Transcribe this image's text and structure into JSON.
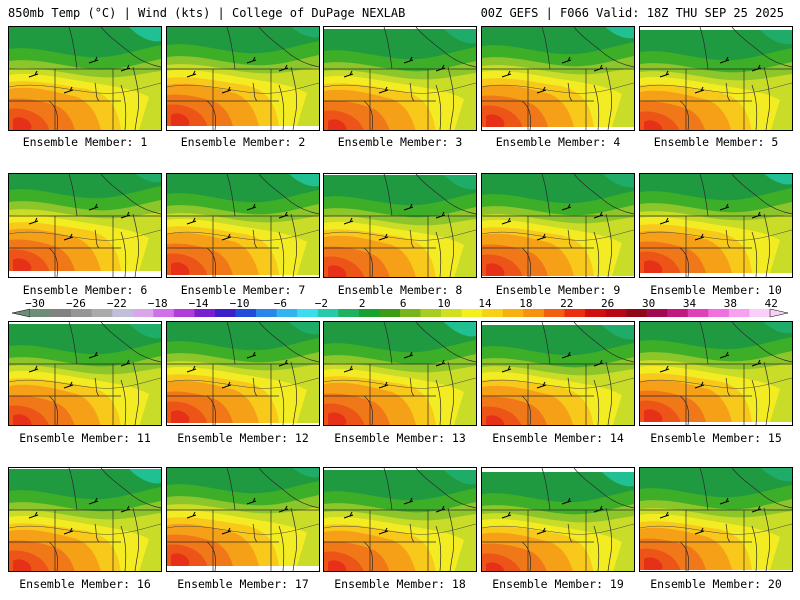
{
  "header": {
    "left_title": "850mb Temp (°C) | Wind (kts) | College of DuPage NEXLAB",
    "right_title": "00Z GEFS | F066 Valid: 18Z THU SEP 25 2025"
  },
  "members": [
    {
      "label": "Ensemble Member: 1"
    },
    {
      "label": "Ensemble Member: 2"
    },
    {
      "label": "Ensemble Member: 3"
    },
    {
      "label": "Ensemble Member: 4"
    },
    {
      "label": "Ensemble Member: 5"
    },
    {
      "label": "Ensemble Member: 6"
    },
    {
      "label": "Ensemble Member: 7"
    },
    {
      "label": "Ensemble Member: 8"
    },
    {
      "label": "Ensemble Member: 9"
    },
    {
      "label": "Ensemble Member: 10"
    },
    {
      "label": "Ensemble Member: 11"
    },
    {
      "label": "Ensemble Member: 12"
    },
    {
      "label": "Ensemble Member: 13"
    },
    {
      "label": "Ensemble Member: 14"
    },
    {
      "label": "Ensemble Member: 15"
    },
    {
      "label": "Ensemble Member: 16"
    },
    {
      "label": "Ensemble Member: 17"
    },
    {
      "label": "Ensemble Member: 18"
    },
    {
      "label": "Ensemble Member: 19"
    },
    {
      "label": "Ensemble Member: 20"
    }
  ],
  "colorbar": {
    "labels": [
      "−30",
      "−26",
      "−22",
      "−18",
      "−14",
      "−10",
      "−6",
      "−2",
      "2",
      "6",
      "10",
      "14",
      "18",
      "22",
      "26",
      "30",
      "34",
      "38",
      "42"
    ],
    "colors": [
      "#6e8c78",
      "#828282",
      "#969696",
      "#aaaaaa",
      "#bfbfd9",
      "#d9a6ea",
      "#d070e8",
      "#b23cd8",
      "#7a1fd0",
      "#3c1fc8",
      "#1f4cd8",
      "#2a86e8",
      "#32b4f0",
      "#3cdcf0",
      "#29c8a8",
      "#1fb060",
      "#18a030",
      "#3c9a18",
      "#78b41c",
      "#a8cc20",
      "#d0e020",
      "#f4f020",
      "#f8d018",
      "#f8b010",
      "#f89010",
      "#f06010",
      "#e83010",
      "#d01010",
      "#b80818",
      "#900818",
      "#a00850",
      "#c01880",
      "#e040b8",
      "#f070e0",
      "#f8a0f0",
      "#f8d0f8"
    ]
  },
  "palette": {
    "green_dark": "#1f9a40",
    "green": "#3cae28",
    "green_light": "#8cc62a",
    "yellow_green": "#c8dc28",
    "yellow": "#f4ec22",
    "gold": "#f8c81a",
    "orange": "#f6a018",
    "orange_dark": "#f07818",
    "red_orange": "#ec5418",
    "red": "#e63018",
    "teal": "#20c49c",
    "line": "#2a2a2a"
  }
}
